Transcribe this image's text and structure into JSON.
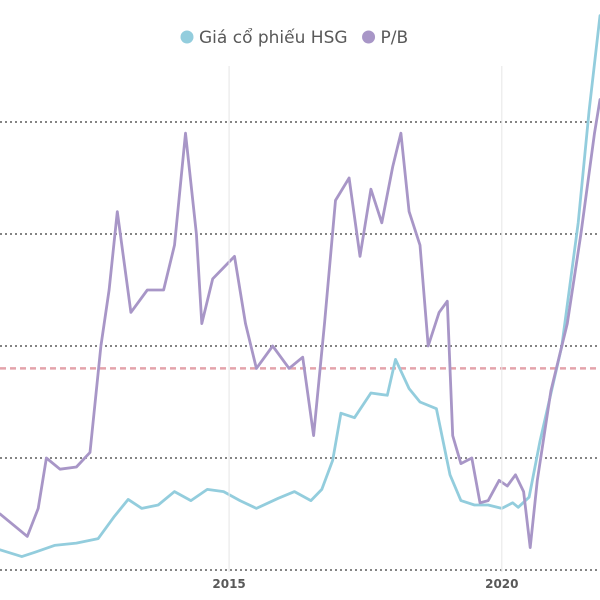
{
  "chart_data": {
    "type": "line",
    "title": "",
    "xlabel": "",
    "ylabel": "",
    "x_tick_labels": [
      "2015",
      "2020"
    ],
    "xlim": [
      2010.8,
      2021.8
    ],
    "ylim": [
      0,
      5
    ],
    "y_axis_labels_visible": false,
    "grid": "horizontal dashed",
    "reference_line_y": 1.8,
    "legend_position": "top-center",
    "series": [
      {
        "name": "Giá cổ phiếu HSG",
        "color": "#93cddd",
        "points": [
          [
            2010.8,
            0.18
          ],
          [
            2011.2,
            0.12
          ],
          [
            2011.45,
            0.16
          ],
          [
            2011.8,
            0.22
          ],
          [
            2012.2,
            0.24
          ],
          [
            2012.6,
            0.28
          ],
          [
            2012.9,
            0.48
          ],
          [
            2013.15,
            0.63
          ],
          [
            2013.4,
            0.55
          ],
          [
            2013.7,
            0.58
          ],
          [
            2014.0,
            0.7
          ],
          [
            2014.3,
            0.62
          ],
          [
            2014.6,
            0.72
          ],
          [
            2014.9,
            0.7
          ],
          [
            2015.2,
            0.62
          ],
          [
            2015.5,
            0.55
          ],
          [
            2015.9,
            0.64
          ],
          [
            2016.2,
            0.7
          ],
          [
            2016.5,
            0.62
          ],
          [
            2016.7,
            0.72
          ],
          [
            2016.9,
            0.98
          ],
          [
            2017.05,
            1.4
          ],
          [
            2017.3,
            1.36
          ],
          [
            2017.6,
            1.58
          ],
          [
            2017.9,
            1.56
          ],
          [
            2018.05,
            1.88
          ],
          [
            2018.3,
            1.62
          ],
          [
            2018.5,
            1.5
          ],
          [
            2018.8,
            1.44
          ],
          [
            2019.05,
            0.85
          ],
          [
            2019.25,
            0.62
          ],
          [
            2019.5,
            0.58
          ],
          [
            2019.75,
            0.58
          ],
          [
            2020.0,
            0.55
          ],
          [
            2020.2,
            0.6
          ],
          [
            2020.3,
            0.56
          ],
          [
            2020.5,
            0.65
          ],
          [
            2020.7,
            1.15
          ],
          [
            2021.1,
            2.0
          ],
          [
            2021.4,
            3.1
          ],
          [
            2021.6,
            4.1
          ],
          [
            2021.8,
            4.95
          ]
        ]
      },
      {
        "name": "P/B",
        "color": "#a896c7",
        "points": [
          [
            2010.8,
            0.5
          ],
          [
            2011.1,
            0.38
          ],
          [
            2011.3,
            0.3
          ],
          [
            2011.5,
            0.55
          ],
          [
            2011.65,
            1.0
          ],
          [
            2011.9,
            0.9
          ],
          [
            2012.2,
            0.92
          ],
          [
            2012.45,
            1.05
          ],
          [
            2012.65,
            2.0
          ],
          [
            2012.8,
            2.5
          ],
          [
            2012.95,
            3.2
          ],
          [
            2013.2,
            2.3
          ],
          [
            2013.5,
            2.5
          ],
          [
            2013.8,
            2.5
          ],
          [
            2014.0,
            2.9
          ],
          [
            2014.2,
            3.9
          ],
          [
            2014.4,
            3.0
          ],
          [
            2014.5,
            2.2
          ],
          [
            2014.7,
            2.6
          ],
          [
            2014.9,
            2.7
          ],
          [
            2015.1,
            2.8
          ],
          [
            2015.3,
            2.2
          ],
          [
            2015.5,
            1.8
          ],
          [
            2015.8,
            2.0
          ],
          [
            2016.1,
            1.8
          ],
          [
            2016.35,
            1.9
          ],
          [
            2016.55,
            1.2
          ],
          [
            2016.75,
            2.2
          ],
          [
            2016.95,
            3.3
          ],
          [
            2017.2,
            3.5
          ],
          [
            2017.4,
            2.8
          ],
          [
            2017.6,
            3.4
          ],
          [
            2017.8,
            3.1
          ],
          [
            2018.0,
            3.6
          ],
          [
            2018.15,
            3.9
          ],
          [
            2018.3,
            3.2
          ],
          [
            2018.5,
            2.9
          ],
          [
            2018.65,
            2.0
          ],
          [
            2018.85,
            2.3
          ],
          [
            2019.0,
            2.4
          ],
          [
            2019.1,
            1.2
          ],
          [
            2019.25,
            0.95
          ],
          [
            2019.45,
            1.0
          ],
          [
            2019.6,
            0.6
          ],
          [
            2019.75,
            0.62
          ],
          [
            2019.95,
            0.8
          ],
          [
            2020.1,
            0.75
          ],
          [
            2020.25,
            0.85
          ],
          [
            2020.4,
            0.7
          ],
          [
            2020.52,
            0.2
          ],
          [
            2020.65,
            0.8
          ],
          [
            2020.9,
            1.6
          ],
          [
            2021.2,
            2.2
          ],
          [
            2021.45,
            3.0
          ],
          [
            2021.7,
            3.9
          ],
          [
            2021.8,
            4.2
          ]
        ]
      }
    ]
  }
}
